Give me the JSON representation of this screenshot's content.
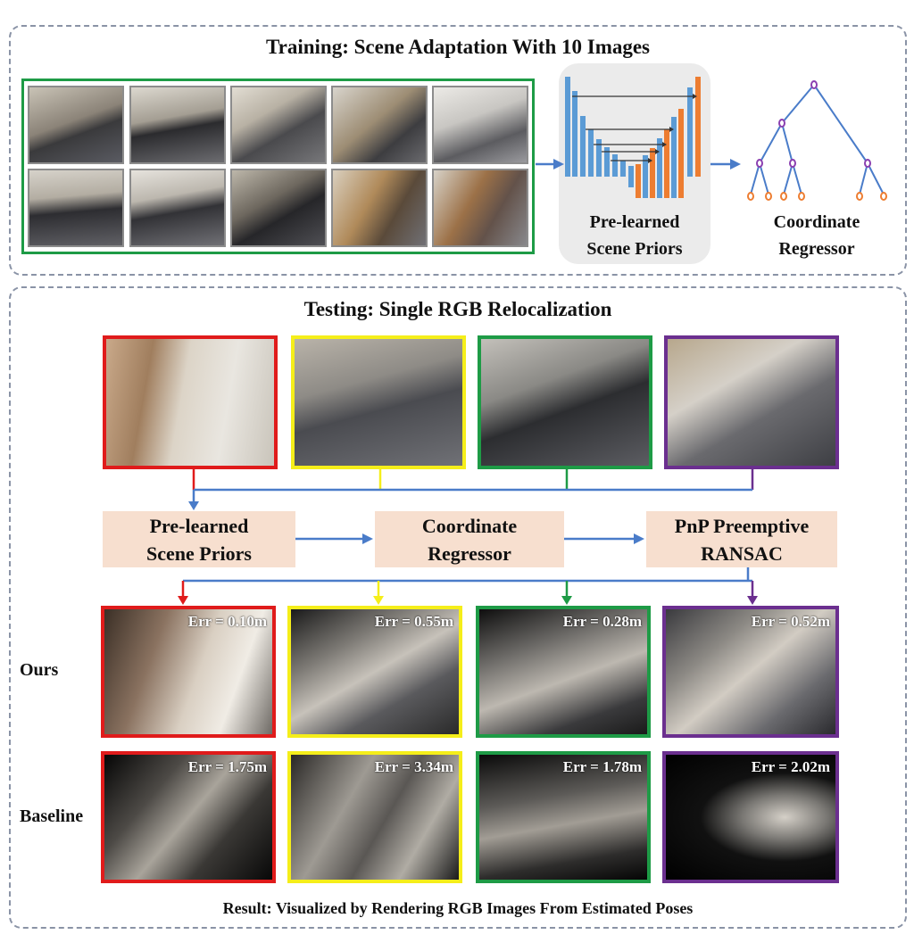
{
  "training": {
    "title": "Training: Scene Adaptation With 10 Images",
    "prior_label_line1": "Pre-learned",
    "prior_label_line2": "Scene Priors",
    "regressor_label_line1": "Coordinate",
    "regressor_label_line2": "Regressor"
  },
  "testing": {
    "title": "Testing: Single RGB Relocalization",
    "box_priors_line1": "Pre-learned",
    "box_priors_line2": "Scene Priors",
    "box_regressor_line1": "Coordinate",
    "box_regressor_line2": "Regressor",
    "box_pnp_line1": "PnP Preemptive",
    "box_pnp_line2": "RANSAC"
  },
  "results": {
    "ours_label": "Ours",
    "baseline_label": "Baseline",
    "ours_errors": [
      "Err = 0.10m",
      "Err = 0.55m",
      "Err = 0.28m",
      "Err = 0.52m"
    ],
    "baseline_errors": [
      "Err = 1.75m",
      "Err = 3.34m",
      "Err = 1.78m",
      "Err = 2.02m"
    ],
    "caption": "Result: Visualized by Rendering RGB Images From Estimated Poses"
  },
  "colors": {
    "red": "#e01b1b",
    "yellow": "#f5ee1a",
    "green": "#1e9b46",
    "purple": "#6b2f8f",
    "arrow": "#4a7cc9",
    "box": "#f7dfcf",
    "bar_blue": "#5b9bd5",
    "bar_orange": "#ed7d31"
  }
}
